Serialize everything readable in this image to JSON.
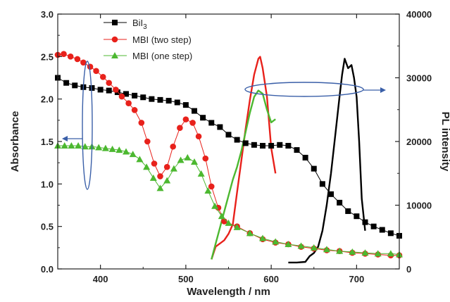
{
  "chart_data": {
    "type": "line",
    "title": "",
    "xlabel": "Wavelength / nm",
    "ylabel_left": "Absorbance",
    "ylabel_right": "PL intensity",
    "xlim": [
      350,
      750
    ],
    "ylim_left": [
      0,
      3.0
    ],
    "ylim_right": [
      0,
      40000
    ],
    "x_ticks": [
      "400",
      "500",
      "600",
      "700"
    ],
    "y_left_ticks": [
      "0.0",
      "0.5",
      "1.0",
      "1.5",
      "2.0",
      "2.5",
      "3.0"
    ],
    "y_right_ticks": [
      "0",
      "10000",
      "20000",
      "30000",
      "40000"
    ],
    "legend_position": "top-center",
    "legend": [
      {
        "label": "BiI",
        "sub": "3",
        "color": "#000000",
        "marker": "square"
      },
      {
        "label": "MBI (two step)",
        "sub": "",
        "color": "#e8211b",
        "marker": "circle"
      },
      {
        "label": "MBI (one step)",
        "sub": "",
        "color": "#4cb830",
        "marker": "triangle"
      }
    ],
    "absorbance_series": [
      {
        "name": "BiI3",
        "color": "#000000",
        "marker": "square",
        "x": [
          350,
          360,
          370,
          380,
          390,
          400,
          410,
          420,
          430,
          440,
          450,
          460,
          470,
          480,
          490,
          500,
          510,
          520,
          530,
          540,
          550,
          560,
          570,
          580,
          590,
          600,
          610,
          620,
          630,
          640,
          650,
          660,
          670,
          680,
          690,
          700,
          710,
          720,
          730,
          740,
          750
        ],
        "y": [
          2.25,
          2.19,
          2.16,
          2.14,
          2.13,
          2.11,
          2.1,
          2.08,
          2.06,
          2.04,
          2.02,
          2.0,
          1.99,
          1.98,
          1.96,
          1.93,
          1.86,
          1.78,
          1.72,
          1.67,
          1.58,
          1.52,
          1.48,
          1.46,
          1.45,
          1.45,
          1.46,
          1.45,
          1.4,
          1.31,
          1.18,
          1.0,
          0.88,
          0.78,
          0.68,
          0.62,
          0.55,
          0.5,
          0.46,
          0.42,
          0.39
        ]
      },
      {
        "name": "MBI (two step)",
        "color": "#e8211b",
        "marker": "circle",
        "x": [
          350,
          357,
          365,
          373,
          380,
          388,
          395,
          403,
          410,
          418,
          425,
          433,
          440,
          448,
          455,
          463,
          470,
          478,
          485,
          493,
          500,
          508,
          515,
          523,
          530,
          538,
          545,
          560,
          575,
          590,
          605,
          620,
          635,
          650,
          665,
          680,
          695,
          710,
          725,
          740,
          750
        ],
        "y": [
          2.52,
          2.53,
          2.5,
          2.47,
          2.43,
          2.38,
          2.33,
          2.26,
          2.19,
          2.11,
          2.03,
          1.95,
          1.87,
          1.72,
          1.5,
          1.24,
          1.09,
          1.2,
          1.44,
          1.66,
          1.76,
          1.72,
          1.56,
          1.3,
          0.97,
          0.72,
          0.56,
          0.5,
          0.42,
          0.35,
          0.31,
          0.29,
          0.26,
          0.24,
          0.22,
          0.21,
          0.19,
          0.18,
          0.17,
          0.16,
          0.16
        ]
      },
      {
        "name": "MBI (one step)",
        "color": "#4cb830",
        "marker": "triangle",
        "x": [
          350,
          358,
          366,
          374,
          382,
          390,
          398,
          406,
          414,
          422,
          430,
          438,
          446,
          454,
          462,
          470,
          478,
          486,
          494,
          502,
          510,
          518,
          526,
          534,
          542,
          550,
          560,
          575,
          590,
          605,
          620,
          635,
          650,
          665,
          680,
          695,
          710,
          725,
          740,
          750
        ],
        "y": [
          1.45,
          1.45,
          1.45,
          1.45,
          1.44,
          1.44,
          1.43,
          1.42,
          1.41,
          1.4,
          1.38,
          1.35,
          1.29,
          1.2,
          1.07,
          0.95,
          1.04,
          1.18,
          1.28,
          1.31,
          1.26,
          1.12,
          0.92,
          0.74,
          0.62,
          0.54,
          0.49,
          0.42,
          0.36,
          0.32,
          0.29,
          0.27,
          0.25,
          0.23,
          0.21,
          0.2,
          0.19,
          0.18,
          0.18,
          0.17
        ]
      }
    ],
    "pl_series": [
      {
        "name": "MBI (two step) PL",
        "color": "#e8211b",
        "x": [
          530,
          535,
          540,
          545,
          550,
          555,
          560,
          565,
          570,
          575,
          580,
          585,
          587,
          590,
          595,
          600,
          605
        ],
        "y": [
          1500,
          3500,
          4000,
          4500,
          5500,
          7000,
          12000,
          17000,
          22000,
          26500,
          30500,
          33000,
          33300,
          31500,
          27000,
          19000,
          15000
        ]
      },
      {
        "name": "MBI (one step) PL",
        "color": "#4cb830",
        "x": [
          530,
          535,
          540,
          545,
          550,
          555,
          560,
          565,
          570,
          575,
          580,
          585,
          590,
          595,
          600,
          605
        ],
        "y": [
          1500,
          4000,
          6500,
          9000,
          11500,
          14000,
          16000,
          18500,
          21500,
          24500,
          27000,
          28000,
          27500,
          25000,
          23000,
          23500
        ]
      },
      {
        "name": "BiI3 PL",
        "color": "#000000",
        "x": [
          620,
          630,
          640,
          645,
          650,
          655,
          660,
          665,
          670,
          675,
          680,
          683,
          686,
          690,
          694,
          697,
          700,
          703,
          706,
          710
        ],
        "y": [
          1000,
          1000,
          1100,
          2000,
          2500,
          3500,
          6000,
          10000,
          15000,
          21000,
          27000,
          30500,
          33000,
          31500,
          32000,
          30000,
          27000,
          20000,
          11000,
          6000
        ]
      }
    ],
    "annotations": [
      {
        "type": "ellipse",
        "points_to": "left axis",
        "color": "#3a5fa8"
      },
      {
        "type": "ellipse",
        "points_to": "right axis",
        "color": "#3a5fa8"
      }
    ]
  }
}
